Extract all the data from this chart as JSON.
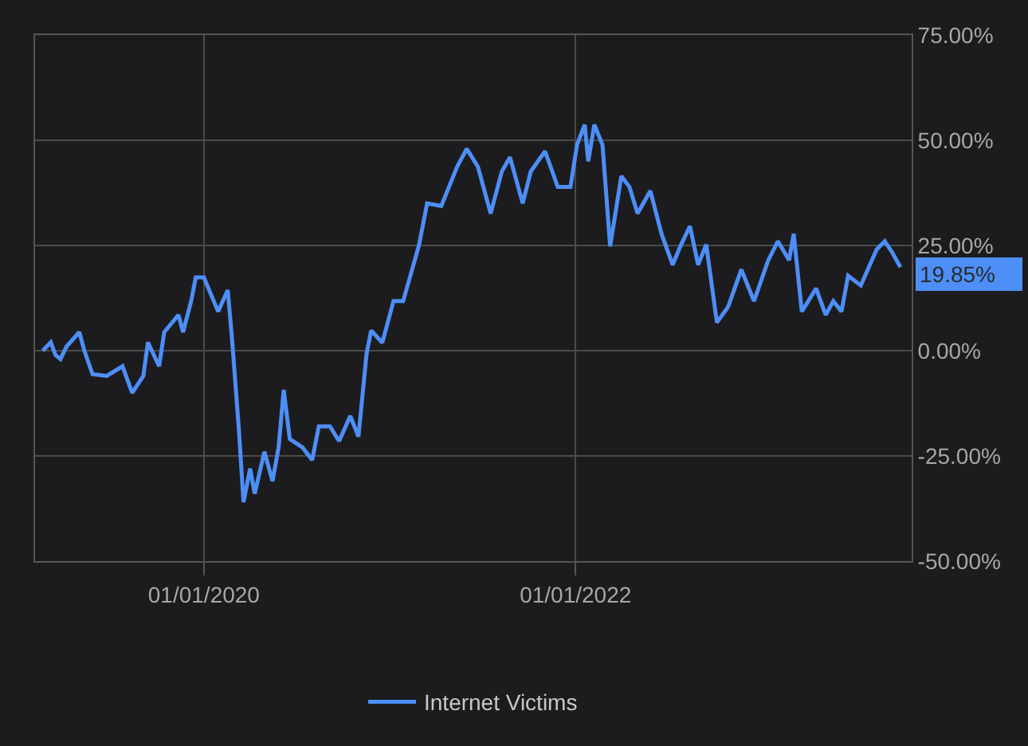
{
  "chart_data": {
    "type": "line",
    "x": [
      "2019-02-18",
      "2019-03-06",
      "2019-03-15",
      "2019-03-25",
      "2019-04-06",
      "2019-05-01",
      "2019-05-11",
      "2019-05-27",
      "2019-06-24",
      "2019-07-25",
      "2019-08-13",
      "2019-09-04",
      "2019-09-13",
      "2019-10-05",
      "2019-10-15",
      "2019-11-12",
      "2019-11-21",
      "2019-12-07",
      "2019-12-16",
      "2020-01-01",
      "2020-01-29",
      "2020-02-17",
      "2020-02-26",
      "2020-03-10",
      "2020-03-19",
      "2020-04-01",
      "2020-04-10",
      "2020-04-29",
      "2020-05-15",
      "2020-05-27",
      "2020-06-06",
      "2020-06-18",
      "2020-07-13",
      "2020-08-01",
      "2020-08-14",
      "2020-09-05",
      "2020-09-23",
      "2020-10-15",
      "2020-10-31",
      "2020-11-16",
      "2020-11-25",
      "2020-12-17",
      "2021-01-08",
      "2021-01-27",
      "2021-02-27",
      "2021-03-15",
      "2021-04-12",
      "2021-05-13",
      "2021-06-01",
      "2021-06-23",
      "2021-07-18",
      "2021-08-09",
      "2021-08-25",
      "2021-09-19",
      "2021-10-05",
      "2021-11-02",
      "2021-11-27",
      "2021-12-22",
      "2022-01-04",
      "2022-01-19",
      "2022-01-26",
      "2022-02-07",
      "2022-02-23",
      "2022-03-10",
      "2022-04-01",
      "2022-04-17",
      "2022-05-03",
      "2022-05-28",
      "2022-06-19",
      "2022-07-11",
      "2022-07-26",
      "2022-08-14",
      "2022-08-30",
      "2022-09-15",
      "2022-10-06",
      "2022-10-28",
      "2022-11-23",
      "2022-12-18",
      "2023-01-15",
      "2023-02-03",
      "2023-02-25",
      "2023-03-06",
      "2023-03-22",
      "2023-04-19",
      "2023-05-08",
      "2023-05-23",
      "2023-06-08",
      "2023-06-21",
      "2023-07-16",
      "2023-08-16",
      "2023-09-01",
      "2023-09-16",
      "2023-10-02"
    ],
    "series": [
      {
        "name": "Internet Victims",
        "color": "#4d8ef7",
        "values": [
          0,
          2,
          -1,
          -2,
          1,
          4.4,
          0,
          -5.6,
          -6,
          -3.7,
          -10,
          -6,
          2,
          -3.7,
          4.4,
          8.5,
          4.4,
          11.8,
          17.4,
          17.4,
          9.3,
          14.4,
          1.9,
          -19,
          -36,
          -28,
          -34,
          -24,
          -31,
          -23,
          -9.3,
          -21,
          -23,
          -26,
          -18,
          -18,
          -21.5,
          -15.5,
          -20.4,
          -0.7,
          4.8,
          1.9,
          11.8,
          11.8,
          25,
          35,
          34.4,
          43.7,
          48,
          43.7,
          32.6,
          42.6,
          46,
          35,
          42.6,
          47.4,
          38.9,
          38.9,
          49,
          53.7,
          45,
          53.7,
          48.9,
          24.8,
          41.5,
          38.9,
          32.6,
          38,
          27.8,
          20.4,
          24.8,
          29.6,
          20.4,
          25.2,
          6.7,
          10.4,
          19.3,
          11.8,
          21.5,
          26,
          21.5,
          27.8,
          9.3,
          14.8,
          8.5,
          11.8,
          9.3,
          17.8,
          15.5,
          24,
          26,
          23.3,
          19.85
        ]
      }
    ],
    "xlim": [
      "2019-02-03",
      "2023-10-24"
    ],
    "xticks": [
      {
        "value": "2020-01-01",
        "label": "01/01/2020"
      },
      {
        "value": "2022-01-01",
        "label": "01/01/2022"
      }
    ],
    "ylim": [
      -50,
      75
    ],
    "yticks": [
      {
        "value": -50,
        "label": "-50.00%"
      },
      {
        "value": -25,
        "label": "-25.00%"
      },
      {
        "value": 0,
        "label": "0.00%"
      },
      {
        "value": 25,
        "label": "25.00%"
      },
      {
        "value": 50,
        "label": "50.00%"
      },
      {
        "value": 75,
        "label": "75.00%"
      }
    ],
    "annotations": [
      {
        "text": "19.85%",
        "x": "2023-10-02",
        "y": 19.85
      }
    ],
    "grid": true,
    "legend": "bottom",
    "marker": "none",
    "line_style": "solid"
  }
}
